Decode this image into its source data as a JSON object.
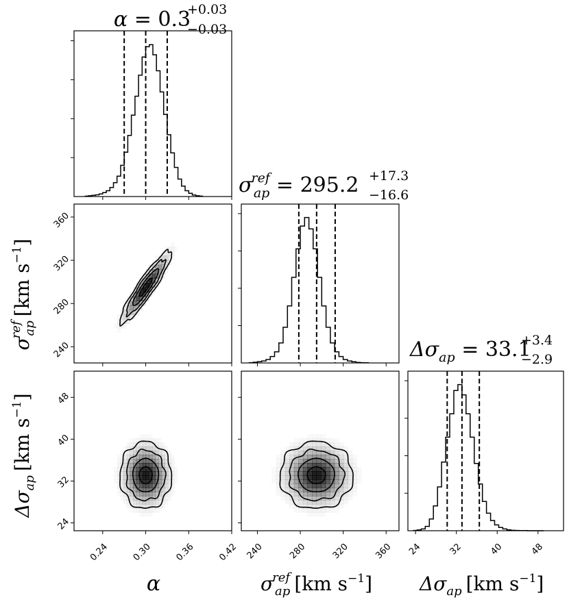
{
  "chart_data": {
    "type": "corner",
    "parameters": [
      {
        "key": "alpha",
        "range": [
          0.2,
          0.42
        ],
        "ticks": [
          0.24,
          0.3,
          0.36,
          0.42
        ],
        "tick_labels": [
          "0.24",
          "0.30",
          "0.36",
          "0.42"
        ]
      },
      {
        "key": "sigma_ref",
        "range": [
          225,
          372
        ],
        "ticks": [
          240,
          280,
          320,
          360
        ],
        "tick_labels": [
          "240",
          "280",
          "320",
          "360"
        ]
      },
      {
        "key": "dsigma",
        "range": [
          22.5,
          53
        ],
        "ticks": [
          24,
          32,
          40,
          48
        ],
        "tick_labels": [
          "24",
          "32",
          "40",
          "48"
        ]
      }
    ],
    "titles": [
      {
        "lhs": "α",
        "value": "0.3",
        "plus": "+0.03",
        "minus": "−0.03"
      },
      {
        "lhs_base": "σ",
        "lhs_sub": "ap",
        "lhs_sup": "ref",
        "value": "295.2",
        "plus": "+17.3",
        "minus": "−16.6"
      },
      {
        "lhs_pre": "Δσ",
        "lhs_sub": "ap",
        "value": "33.1",
        "plus": "+3.4",
        "minus": "−2.9"
      }
    ],
    "quantiles": [
      [
        0.27,
        0.3,
        0.33
      ],
      [
        278.6,
        295.2,
        312.5
      ],
      [
        30.2,
        33.1,
        36.5
      ]
    ],
    "histograms": [
      {
        "bin_start": 0.215,
        "bin_width": 0.005,
        "counts": [
          3,
          5,
          8,
          12,
          18,
          27,
          40,
          62,
          95,
          140,
          215,
          305,
          420,
          560,
          690,
          835,
          960,
          1030,
          1045,
          975,
          865,
          720,
          565,
          425,
          300,
          200,
          120,
          72,
          40,
          22,
          11,
          5,
          3
        ]
      },
      {
        "bin_start": 232,
        "bin_width": 4,
        "counts": [
          2,
          5,
          9,
          14,
          24,
          45,
          78,
          140,
          250,
          400,
          600,
          800,
          960,
          1020,
          940,
          800,
          600,
          400,
          250,
          140,
          78,
          45,
          24,
          14,
          8,
          4,
          2,
          1
        ]
      },
      {
        "bin_start": 23.5,
        "bin_width": 0.8,
        "counts": [
          2,
          5,
          12,
          30,
          80,
          170,
          300,
          470,
          640,
          800,
          960,
          1000,
          930,
          800,
          640,
          460,
          320,
          200,
          120,
          70,
          40,
          22,
          12,
          6,
          3,
          2,
          1,
          1,
          0,
          0,
          0,
          0
        ]
      }
    ],
    "pairs": [
      {
        "x": "alpha",
        "y": "sigma_ref",
        "means": [
          0.3,
          295
        ],
        "sd": [
          0.018,
          17
        ],
        "rho": 0.92
      },
      {
        "x": "alpha",
        "y": "dsigma",
        "means": [
          0.3,
          33.1
        ],
        "sd": [
          0.018,
          3.2
        ],
        "rho": 0.0
      },
      {
        "x": "sigma_ref",
        "y": "dsigma",
        "means": [
          295,
          33.1
        ],
        "sd": [
          17,
          3.2
        ],
        "rho": 0.0
      }
    ],
    "contour_sigmas": [
      0.5,
      1.0,
      1.5,
      2.0
    ],
    "labels": {
      "x": [
        {
          "base": "α"
        },
        {
          "base": "σ",
          "sub": "ap",
          "sup": "ref",
          "unit": "[km s",
          "unit_sup": "−1",
          "unit_end": "]"
        },
        {
          "pre": "Δσ",
          "sub": "ap",
          "unit": "[km s",
          "unit_sup": "−1",
          "unit_end": "]"
        }
      ],
      "y": [
        {
          "base": "σ",
          "sub": "ap",
          "sup": "ref",
          "unit": "[km s",
          "unit_sup": "−1",
          "unit_end": "]"
        },
        {
          "pre": "Δσ",
          "sub": "ap",
          "unit": "[km s",
          "unit_sup": "−1",
          "unit_end": "]"
        }
      ]
    },
    "colors": {
      "line": "#000000",
      "density": "#000000",
      "background": "#ffffff"
    },
    "grid": false
  }
}
